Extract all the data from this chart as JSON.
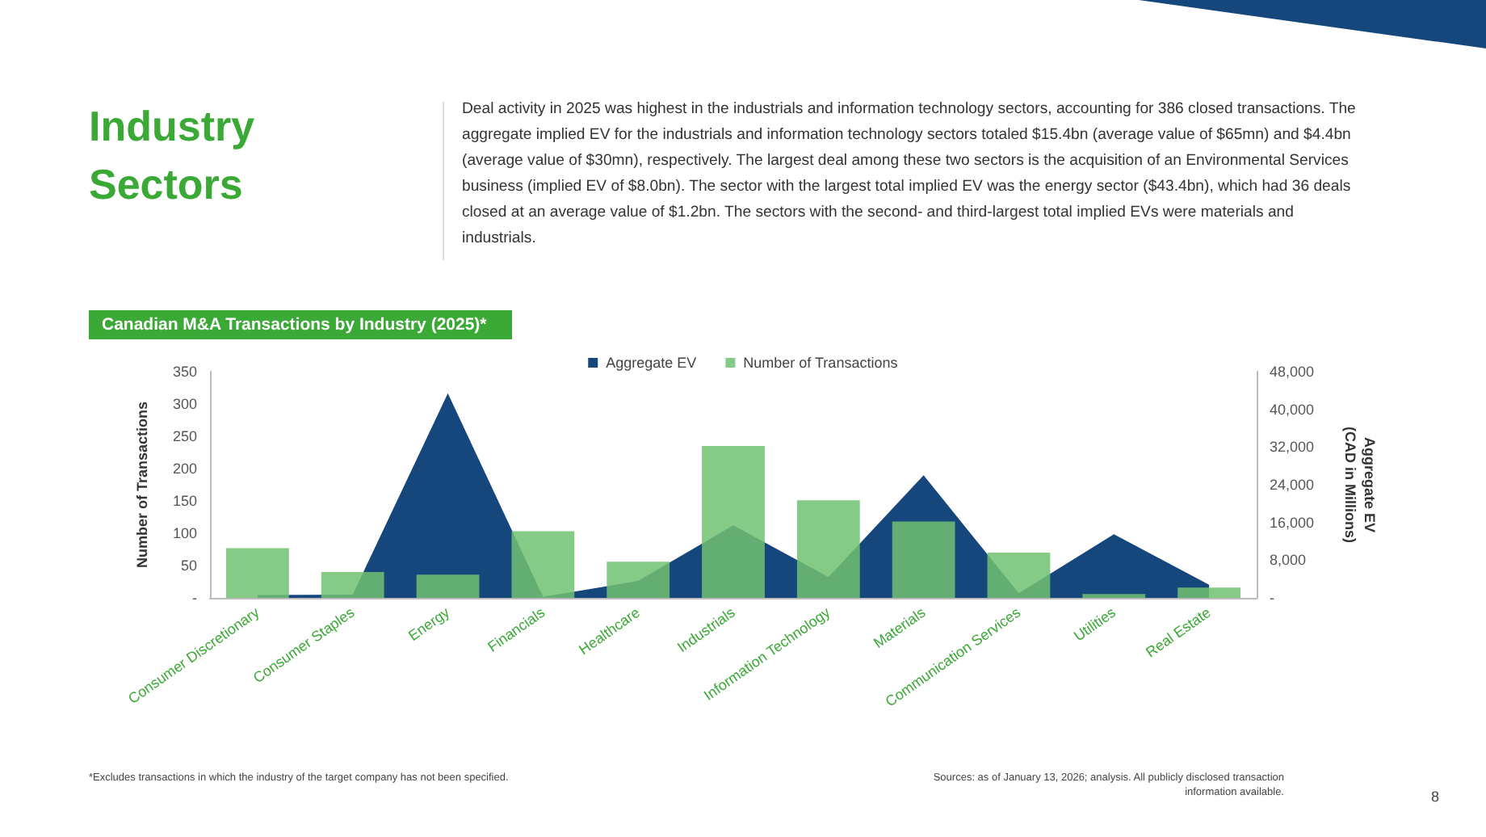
{
  "chart_data": {
    "type": "bar",
    "title": "Canadian M&A Transactions by Industry (2025)*",
    "categories": [
      "Consumer Discretionary",
      "Consumer Staples",
      "Energy",
      "Financials",
      "Healthcare",
      "Industrials",
      "Information Technology",
      "Materials",
      "Communication Services",
      "Utilities",
      "Real Estate"
    ],
    "series": [
      {
        "name": "Aggregate EV",
        "type": "area",
        "axis": "y2",
        "color": "#16477c",
        "values": [
          600,
          700,
          43400,
          200,
          3600,
          15400,
          4400,
          26000,
          1000,
          13500,
          2800
        ]
      },
      {
        "name": "Number of Transactions",
        "type": "bar",
        "color": "#70c172",
        "values": [
          77,
          40,
          36,
          103,
          56,
          235,
          151,
          118,
          70,
          6,
          16
        ]
      }
    ],
    "ylabel": "Number of Transactions",
    "y2label": "Aggregate EV\n(CAD in Millions)",
    "ylim": [
      0,
      350
    ],
    "yticks": [
      {
        "value": 0,
        "label": "-"
      },
      50,
      100,
      150,
      200,
      250,
      300,
      350
    ],
    "y2lim": [
      0,
      48000
    ],
    "y2ticks": [
      {
        "value": 0,
        "label": "-"
      },
      {
        "value": 8000,
        "label": "8,000"
      },
      {
        "value": 16000,
        "label": "16,000"
      },
      {
        "value": 24000,
        "label": "24,000"
      },
      {
        "value": 32000,
        "label": "32,000"
      },
      {
        "value": 40000,
        "label": "40,000"
      },
      {
        "value": 48000,
        "label": "48,000"
      }
    ],
    "grid": false,
    "legend": "top",
    "marker": "none",
    "annotations": [
      "Industry Sectors",
      "Deal activity in 2025 was highest in the industrials and information technology sectors, accounting for 386 closed transactions. The aggregate implied EV for the industrials and information technology sectors totaled $15.4bn (average value of $65mn) and $4.4bn (average value of $30mn), respectively. The largest deal among these two sectors is the acquisition of an Environmental Services business (implied EV of $8.0bn). The sector with the largest total implied EV was the energy sector ($43.4bn), which had 36 deals closed at an average value of $1.2bn. The sectors with the second- and third-largest total implied EVs were materials and industrials.",
      "*Excludes transactions in which the industry of the target company has not been specified.",
      "Sources: as of January 13, 2026; analysis. All publicly disclosed transaction information available.",
      "8"
    ]
  }
}
